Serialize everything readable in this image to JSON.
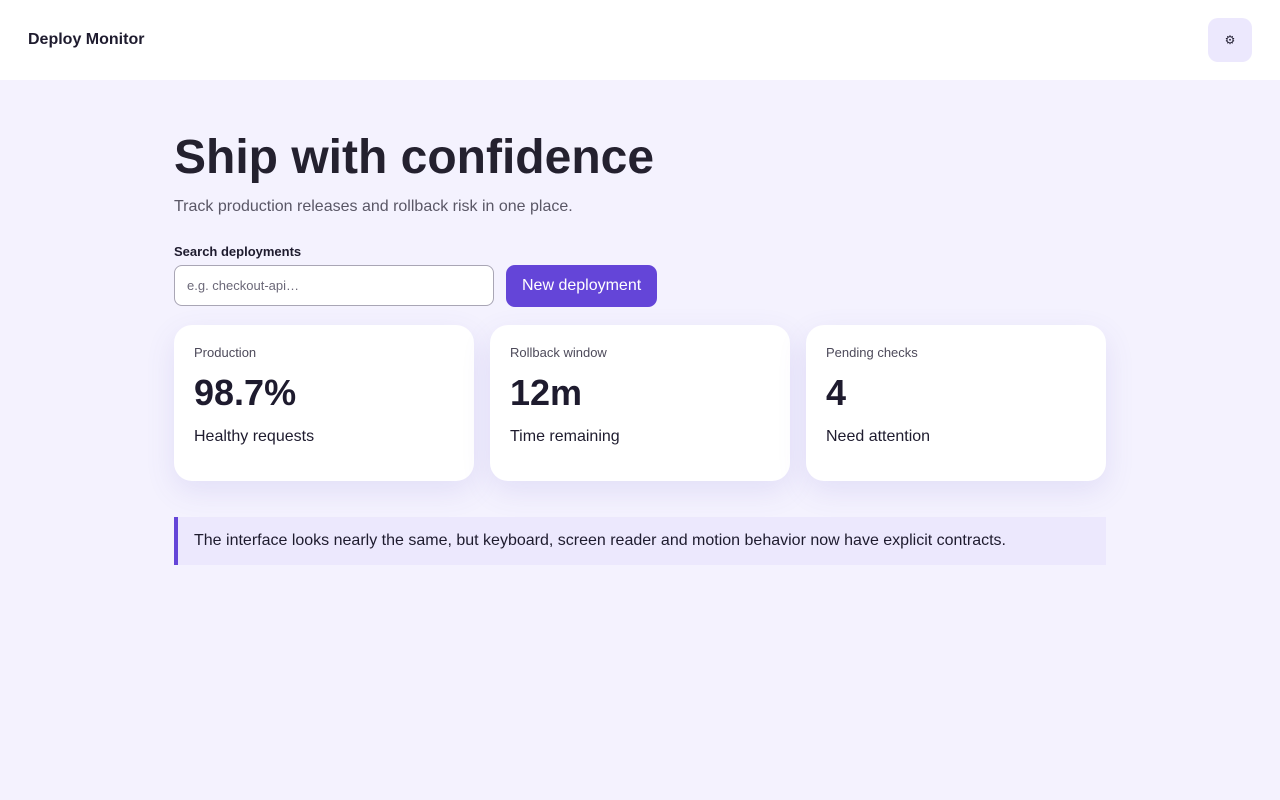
{
  "header": {
    "brand": "Deploy Monitor",
    "settings_icon": "⚙"
  },
  "hero": {
    "title": "Ship with confidence",
    "subtitle": "Track production releases and rollback risk in one place."
  },
  "search": {
    "label": "Search deployments",
    "placeholder": "e.g. checkout-api…",
    "button": "New deployment"
  },
  "cards": [
    {
      "label": "Production",
      "value": "98.7%",
      "caption": "Healthy requests"
    },
    {
      "label": "Rollback window",
      "value": "12m",
      "caption": "Time remaining"
    },
    {
      "label": "Pending checks",
      "value": "4",
      "caption": "Need attention"
    }
  ],
  "note": "The interface looks nearly the same, but keyboard, screen reader and motion behavior now have explicit contracts."
}
